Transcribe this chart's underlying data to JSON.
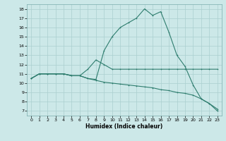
{
  "xlabel": "Humidex (Indice chaleur)",
  "bg_color": "#cce8e8",
  "grid_color": "#aacfcf",
  "line_color": "#2e7d6e",
  "ylim": [
    7,
    18
  ],
  "xlim": [
    0,
    23
  ],
  "yticks": [
    7,
    8,
    9,
    10,
    11,
    12,
    13,
    14,
    15,
    16,
    17,
    18
  ],
  "xticks": [
    0,
    1,
    2,
    3,
    4,
    5,
    6,
    7,
    8,
    9,
    10,
    11,
    12,
    13,
    14,
    15,
    16,
    17,
    18,
    19,
    20,
    21,
    22,
    23
  ],
  "line1_x": [
    0,
    1,
    2,
    3,
    4,
    5,
    6,
    7,
    8,
    9,
    10,
    11,
    12,
    13,
    14,
    15,
    16,
    17,
    18,
    19,
    20,
    21,
    22,
    23
  ],
  "line1_y": [
    10.5,
    11.0,
    11.0,
    11.0,
    11.0,
    10.8,
    10.8,
    10.5,
    10.4,
    13.5,
    15.0,
    16.0,
    16.5,
    17.0,
    18.0,
    17.3,
    17.7,
    15.5,
    13.0,
    11.8,
    9.8,
    8.3,
    7.8,
    7.0
  ],
  "line2_x": [
    0,
    1,
    2,
    3,
    4,
    5,
    6,
    7,
    8,
    9,
    10,
    11,
    12,
    13,
    14,
    15,
    16,
    17,
    18,
    19,
    20,
    21,
    22,
    23
  ],
  "line2_y": [
    10.5,
    11.0,
    11.0,
    11.0,
    11.0,
    10.8,
    10.8,
    11.5,
    12.5,
    12.0,
    11.5,
    11.5,
    11.5,
    11.5,
    11.5,
    11.5,
    11.5,
    11.5,
    11.5,
    11.5,
    11.5,
    11.5,
    11.5,
    11.5
  ],
  "line3_x": [
    0,
    1,
    2,
    3,
    4,
    5,
    6,
    7,
    8,
    9,
    10,
    11,
    12,
    13,
    14,
    15,
    16,
    17,
    18,
    19,
    20,
    21,
    22,
    23
  ],
  "line3_y": [
    10.5,
    11.0,
    11.0,
    11.0,
    11.0,
    10.8,
    10.8,
    10.5,
    10.3,
    10.1,
    10.0,
    9.9,
    9.8,
    9.7,
    9.6,
    9.5,
    9.3,
    9.2,
    9.0,
    8.9,
    8.7,
    8.3,
    7.8,
    7.2
  ]
}
